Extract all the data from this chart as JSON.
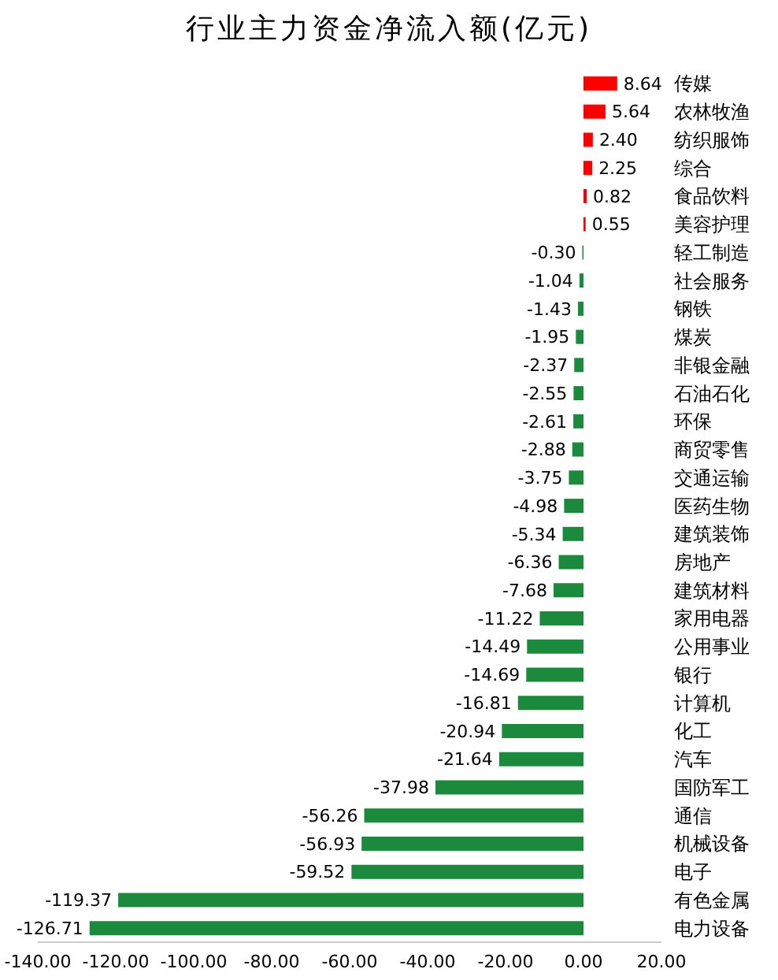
{
  "chart_data": {
    "type": "bar",
    "orientation": "horizontal",
    "title": "行业主力资金净流入额(亿元)",
    "categories": [
      "传媒",
      "农林牧渔",
      "纺织服饰",
      "综合",
      "食品饮料",
      "美容护理",
      "轻工制造",
      "社会服务",
      "钢铁",
      "煤炭",
      "非银金融",
      "石油石化",
      "环保",
      "商贸零售",
      "交通运输",
      "医药生物",
      "建筑装饰",
      "房地产",
      "建筑材料",
      "家用电器",
      "公用事业",
      "银行",
      "计算机",
      "化工",
      "汽车",
      "国防军工",
      "通信",
      "机械设备",
      "电子",
      "有色金属",
      "电力设备"
    ],
    "values": [
      8.64,
      5.64,
      2.4,
      2.25,
      0.82,
      0.55,
      -0.3,
      -1.04,
      -1.43,
      -1.95,
      -2.37,
      -2.55,
      -2.61,
      -2.88,
      -3.75,
      -4.98,
      -5.34,
      -6.36,
      -7.68,
      -11.22,
      -14.49,
      -14.69,
      -16.81,
      -20.94,
      -21.64,
      -37.98,
      -56.26,
      -56.93,
      -59.52,
      -119.37,
      -126.71
    ],
    "value_labels": [
      "8.64",
      "5.64",
      "2.40",
      "2.25",
      "0.82",
      "0.55",
      "-0.30",
      "-1.04",
      "-1.43",
      "-1.95",
      "-2.37",
      "-2.55",
      "-2.61",
      "-2.88",
      "-3.75",
      "-4.98",
      "-5.34",
      "-6.36",
      "-7.68",
      "-11.22",
      "-14.49",
      "-14.69",
      "-16.81",
      "-20.94",
      "-21.64",
      "-37.98",
      "-56.26",
      "-56.93",
      "-59.52",
      "-119.37",
      "-126.71"
    ],
    "colors": [
      "#ff0000",
      "#ff0000",
      "#ff0000",
      "#ff0000",
      "#ff0000",
      "#ff0000",
      "#1b8a3c",
      "#1b8a3c",
      "#1b8a3c",
      "#1b8a3c",
      "#1b8a3c",
      "#1b8a3c",
      "#1b8a3c",
      "#1b8a3c",
      "#1b8a3c",
      "#1b8a3c",
      "#1b8a3c",
      "#1b8a3c",
      "#1b8a3c",
      "#1b8a3c",
      "#1b8a3c",
      "#1b8a3c",
      "#1b8a3c",
      "#1b8a3c",
      "#1b8a3c",
      "#1b8a3c",
      "#1b8a3c",
      "#1b8a3c",
      "#1b8a3c",
      "#1b8a3c",
      "#1b8a3c"
    ],
    "xlim": [
      -140,
      20
    ],
    "xticks": [
      {
        "value": -140,
        "label": "-140.00"
      },
      {
        "value": -120,
        "label": "-120.00"
      },
      {
        "value": -100,
        "label": "-100.00"
      },
      {
        "value": -80,
        "label": "-80.00"
      },
      {
        "value": -60,
        "label": "-60.00"
      },
      {
        "value": -40,
        "label": "-40.00"
      },
      {
        "value": -20,
        "label": "-20.00"
      },
      {
        "value": 0,
        "label": "0.00"
      },
      {
        "value": 20,
        "label": "20.00"
      }
    ],
    "grid": false,
    "legend": false
  }
}
